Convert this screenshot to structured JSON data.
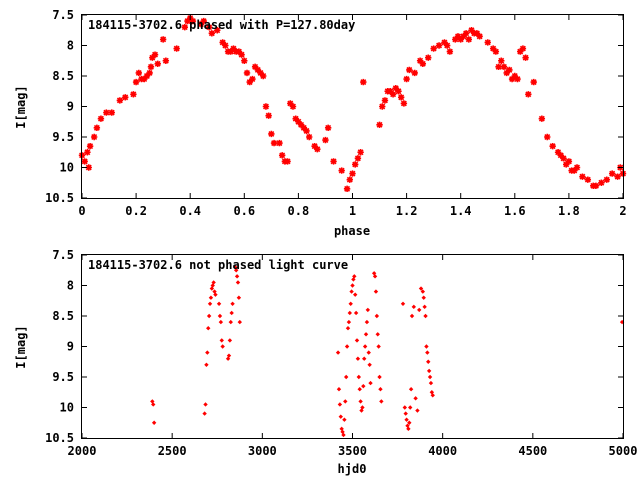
{
  "chart_data": [
    {
      "type": "scatter",
      "title": "184115-3702.6 phased with P=127.80day",
      "xlabel": "phase",
      "ylabel": "I[mag]",
      "xlim": [
        0,
        2
      ],
      "ylim": [
        10.5,
        7.5
      ],
      "y_inverted": true,
      "grid": false,
      "marker": "star",
      "color": "#ff0000",
      "xticks": [
        "0",
        "0.2",
        "0.4",
        "0.6",
        "0.8",
        "1",
        "1.2",
        "1.4",
        "1.6",
        "1.8",
        "2"
      ],
      "yticks": [
        "7.5",
        "8",
        "8.5",
        "9",
        "9.5",
        "10",
        "10.5"
      ],
      "series": [
        {
          "x": [
            0.0,
            0.01,
            0.02,
            0.025,
            0.03,
            0.045,
            0.055,
            0.07,
            0.09,
            0.11,
            0.14,
            0.16,
            0.19,
            0.2,
            0.21,
            0.22,
            0.23,
            0.24,
            0.25,
            0.255,
            0.26,
            0.28,
            0.3,
            0.31,
            0.38,
            0.39,
            0.4,
            0.41,
            0.45,
            0.47,
            0.48,
            0.5,
            0.52,
            0.53,
            0.54,
            0.55,
            0.56,
            0.57,
            0.58,
            0.59,
            0.6,
            0.61,
            0.62,
            0.63,
            0.64,
            0.65,
            0.66,
            0.67,
            0.68,
            0.69,
            0.7,
            0.71,
            0.73,
            0.74,
            0.75,
            0.76,
            0.77,
            0.78,
            0.79,
            0.8,
            0.81,
            0.82,
            0.83,
            0.84,
            0.86,
            0.87,
            0.9,
            0.91,
            0.93,
            0.96,
            0.98,
            0.99,
            1.0,
            1.01,
            1.02,
            1.03,
            1.04,
            1.1,
            1.11,
            1.12,
            1.13,
            1.14,
            1.15,
            1.16,
            1.17,
            1.18,
            1.19,
            1.2,
            1.21,
            1.23,
            1.25,
            1.26,
            1.28,
            1.3,
            1.32,
            1.34,
            1.35,
            1.36,
            1.38,
            1.39,
            1.4,
            1.41,
            1.42,
            1.43,
            1.44,
            1.45,
            1.46,
            1.47,
            1.5,
            1.52,
            1.53,
            1.54,
            1.55,
            1.56,
            1.57,
            1.58,
            1.59,
            1.6,
            1.61,
            1.62,
            1.63,
            1.64,
            1.65,
            1.67,
            1.7,
            1.72,
            1.74,
            1.76,
            1.77,
            1.78,
            1.79,
            1.8,
            1.81,
            1.82,
            1.83,
            1.85,
            1.87,
            1.89,
            1.9,
            1.92,
            1.94,
            1.96,
            1.98,
            1.99,
            2.0,
            0.27,
            0.44,
            0.35
          ],
          "y": [
            9.8,
            9.9,
            9.75,
            10.0,
            9.65,
            9.5,
            9.35,
            9.2,
            9.1,
            9.1,
            8.9,
            8.85,
            8.8,
            8.6,
            8.45,
            8.55,
            8.55,
            8.5,
            8.45,
            8.35,
            8.2,
            8.3,
            7.9,
            8.25,
            7.7,
            7.6,
            7.55,
            7.6,
            7.6,
            7.7,
            7.8,
            7.75,
            7.95,
            8.0,
            8.1,
            8.1,
            8.05,
            8.1,
            8.1,
            8.15,
            8.25,
            8.45,
            8.6,
            8.55,
            8.35,
            8.4,
            8.45,
            8.5,
            9.0,
            9.15,
            9.45,
            9.6,
            9.6,
            9.8,
            9.9,
            9.9,
            8.95,
            9.0,
            9.2,
            9.25,
            9.3,
            9.35,
            9.4,
            9.5,
            9.65,
            9.7,
            9.55,
            9.35,
            9.9,
            10.05,
            10.35,
            10.2,
            10.1,
            9.95,
            9.85,
            9.75,
            8.6,
            9.3,
            9.0,
            8.9,
            8.75,
            8.75,
            8.8,
            8.7,
            8.75,
            8.85,
            8.95,
            8.55,
            8.4,
            8.45,
            8.25,
            8.3,
            8.2,
            8.05,
            8.0,
            7.95,
            8.0,
            8.1,
            7.9,
            7.85,
            7.9,
            7.85,
            7.8,
            7.9,
            7.75,
            7.8,
            7.8,
            7.85,
            7.95,
            8.05,
            8.1,
            8.35,
            8.25,
            8.35,
            8.45,
            8.4,
            8.55,
            8.5,
            8.55,
            8.1,
            8.05,
            8.2,
            8.8,
            8.6,
            9.2,
            9.5,
            9.65,
            9.75,
            9.8,
            9.85,
            9.95,
            9.9,
            10.05,
            10.05,
            10.0,
            10.15,
            10.2,
            10.3,
            10.3,
            10.25,
            10.2,
            10.1,
            10.15,
            10.0,
            10.1,
            8.15,
            7.65,
            8.05
          ]
        }
      ]
    },
    {
      "type": "scatter",
      "title": "184115-3702.6 not phased light curve",
      "xlabel": "hjd0",
      "ylabel": "I[mag]",
      "xlim": [
        2000,
        5000
      ],
      "ylim": [
        10.5,
        7.5
      ],
      "y_inverted": true,
      "grid": false,
      "marker": "diamond",
      "color": "#ff0000",
      "xticks": [
        "2000",
        "2500",
        "3000",
        "3500",
        "4000",
        "4500",
        "5000"
      ],
      "yticks": [
        "7.5",
        "8",
        "8.5",
        "9",
        "9.5",
        "10",
        "10.5"
      ],
      "series": [
        {
          "x": [
            2390,
            2395,
            2400,
            2680,
            2685,
            2690,
            2695,
            2700,
            2705,
            2710,
            2715,
            2720,
            2725,
            2730,
            2735,
            2740,
            2760,
            2765,
            2770,
            2775,
            2780,
            2810,
            2815,
            2820,
            2825,
            2830,
            2835,
            2850,
            2855,
            2860,
            2865,
            2870,
            2875,
            3420,
            3425,
            3430,
            3435,
            3440,
            3445,
            3450,
            3455,
            3460,
            3465,
            3470,
            3475,
            3480,
            3485,
            3490,
            3495,
            3500,
            3505,
            3510,
            3515,
            3520,
            3525,
            3530,
            3535,
            3540,
            3545,
            3550,
            3555,
            3560,
            3565,
            3570,
            3575,
            3580,
            3585,
            3590,
            3595,
            3600,
            3620,
            3625,
            3630,
            3635,
            3640,
            3645,
            3650,
            3655,
            3660,
            3780,
            3790,
            3795,
            3800,
            3805,
            3810,
            3815,
            3820,
            3825,
            3830,
            3840,
            3850,
            3860,
            3870,
            3880,
            3890,
            3895,
            3900,
            3905,
            3910,
            3915,
            3920,
            3925,
            3930,
            3935,
            3940,
            3945,
            4995
          ],
          "y": [
            9.9,
            9.95,
            10.25,
            10.1,
            9.95,
            9.3,
            9.1,
            8.7,
            8.5,
            8.3,
            8.2,
            8.05,
            8.0,
            7.95,
            8.1,
            8.15,
            8.3,
            8.5,
            8.6,
            8.9,
            9.0,
            9.2,
            9.15,
            8.9,
            8.6,
            8.45,
            8.3,
            7.7,
            7.75,
            7.85,
            7.95,
            8.2,
            8.6,
            9.1,
            9.7,
            9.95,
            10.15,
            10.35,
            10.4,
            10.45,
            10.2,
            9.9,
            9.5,
            9.0,
            8.7,
            8.6,
            8.45,
            8.3,
            8.1,
            8.0,
            7.9,
            7.85,
            8.15,
            8.45,
            8.9,
            9.2,
            9.5,
            9.7,
            9.9,
            10.05,
            10.0,
            9.65,
            9.2,
            9.0,
            8.8,
            8.6,
            8.4,
            9.1,
            9.3,
            9.6,
            7.8,
            7.85,
            8.1,
            8.5,
            8.8,
            9.0,
            9.5,
            9.7,
            9.9,
            8.3,
            10.0,
            10.1,
            10.2,
            10.3,
            10.35,
            10.25,
            10.0,
            9.7,
            8.5,
            8.35,
            9.85,
            10.05,
            8.4,
            8.05,
            8.1,
            8.2,
            8.35,
            8.5,
            9.0,
            9.1,
            9.25,
            9.4,
            9.5,
            9.6,
            9.75,
            9.8,
            8.6
          ]
        }
      ]
    }
  ]
}
